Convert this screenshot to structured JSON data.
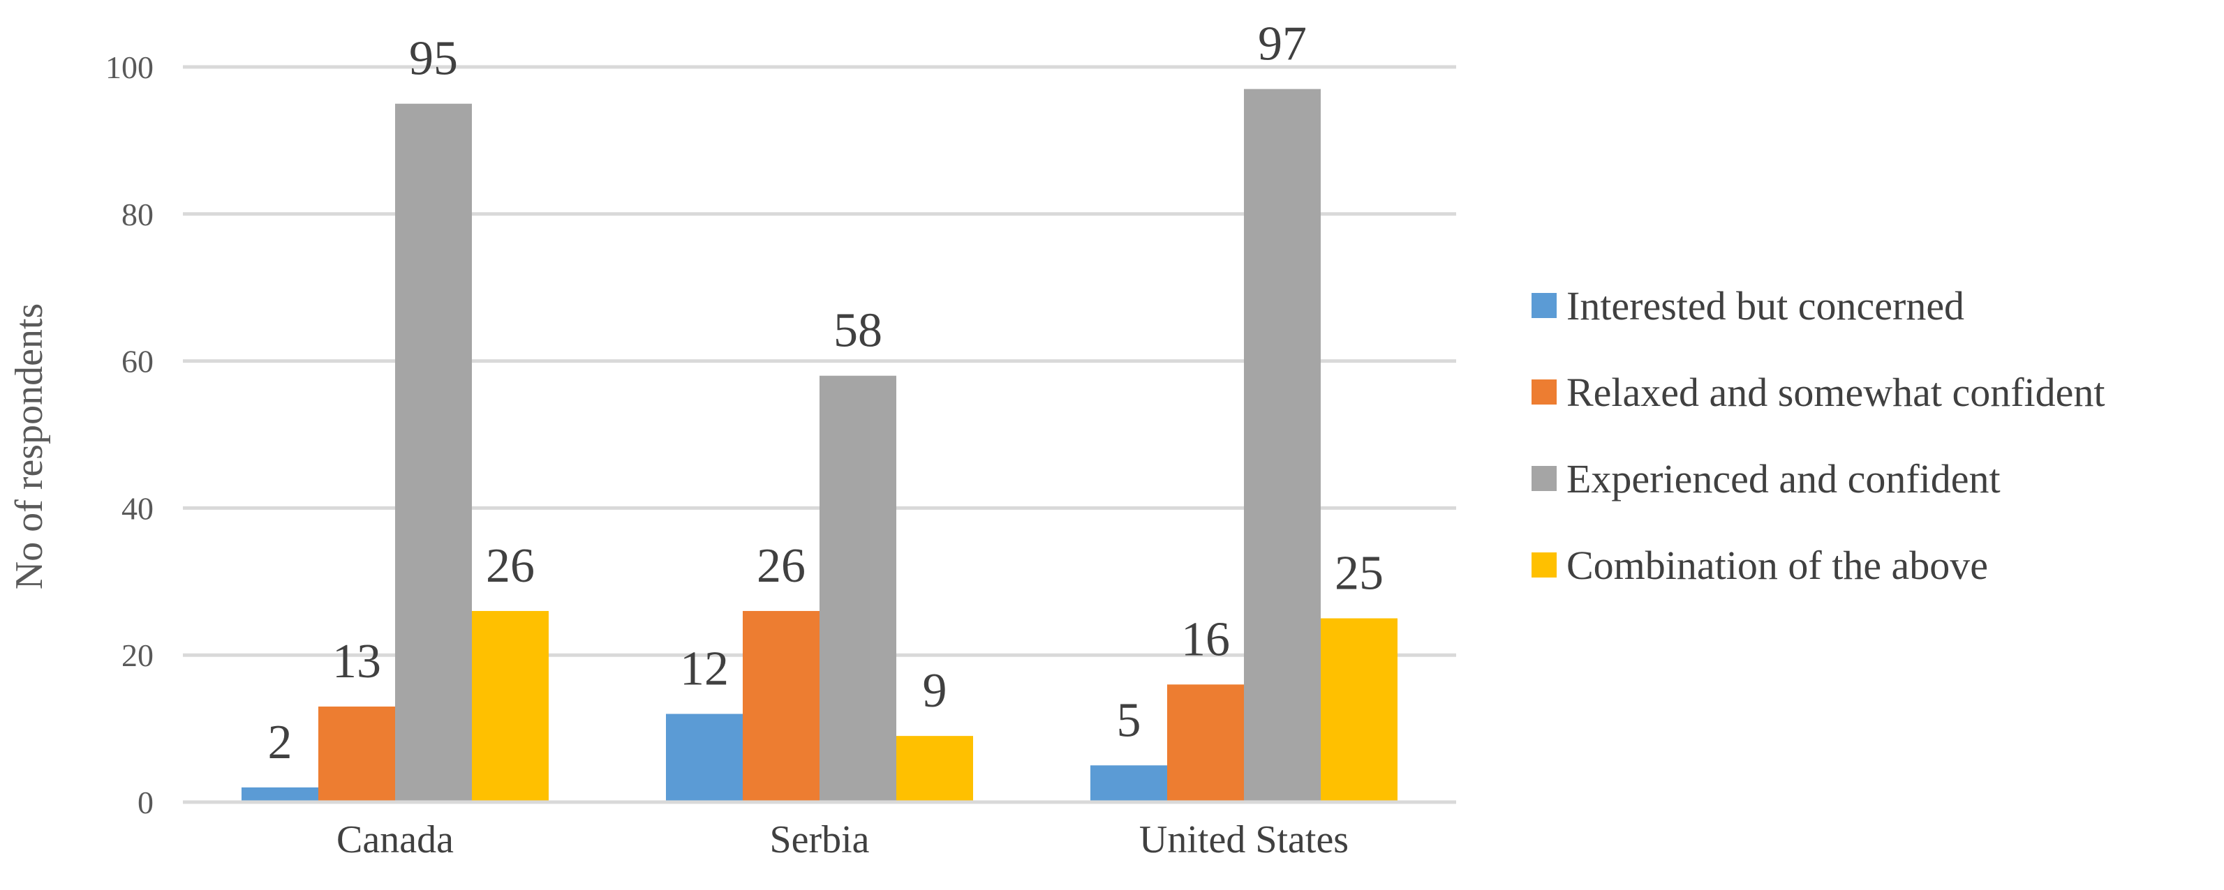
{
  "chart_data": {
    "type": "bar",
    "categories": [
      "Canada",
      "Serbia",
      "United States"
    ],
    "series": [
      {
        "name": "Interested but concerned",
        "values": [
          2,
          12,
          5
        ],
        "color": "#5B9BD5"
      },
      {
        "name": "Relaxed and somewhat confident",
        "values": [
          13,
          26,
          16
        ],
        "color": "#ED7D31"
      },
      {
        "name": "Experienced and confident",
        "values": [
          95,
          58,
          97
        ],
        "color": "#A5A5A5"
      },
      {
        "name": "Combination of the above",
        "values": [
          26,
          9,
          25
        ],
        "color": "#FFC000"
      }
    ],
    "ylabel": "No of respondents",
    "xlabel": "",
    "ylim": [
      0,
      100
    ],
    "yticks": [
      0,
      20,
      40,
      60,
      80,
      100
    ],
    "grid": true,
    "legend_position": "right",
    "data_labels": true
  }
}
